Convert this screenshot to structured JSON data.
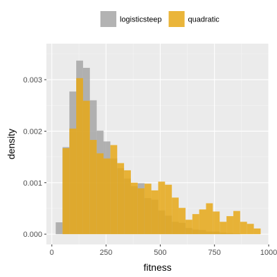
{
  "chart_data": {
    "type": "histogram",
    "xlabel": "fitness",
    "ylabel": "density",
    "xlim": [
      -25,
      1000
    ],
    "ylim": [
      -0.0002,
      0.0037
    ],
    "x_ticks": [
      0,
      250,
      500,
      750,
      1000
    ],
    "x_tick_labels": [
      "0",
      "250",
      "500",
      "750",
      "1000"
    ],
    "y_ticks": [
      0.0,
      0.001,
      0.002,
      0.003
    ],
    "y_tick_labels": [
      "0.000",
      "0.001",
      "0.002",
      "0.003"
    ],
    "grid": true,
    "legend_position": "top",
    "bin_width": 31.5,
    "bin_starts": [
      18,
      49.5,
      81,
      112.5,
      144,
      175.5,
      207,
      238.5,
      270,
      301.5,
      333,
      364.5,
      396,
      427.5,
      459,
      490.5,
      522,
      553.5,
      585,
      616.5,
      648,
      679.5,
      711,
      742.5,
      774,
      805.5,
      837,
      868.5,
      900,
      931.5
    ],
    "series": [
      {
        "name": "logisticsteep",
        "color": "#a6a6a6",
        "values": [
          0.00023,
          0.00169,
          0.00277,
          0.00337,
          0.00323,
          0.0026,
          0.00201,
          0.0018,
          0.00147,
          0.00128,
          0.00108,
          0.00093,
          0.00099,
          0.0007,
          0.00067,
          0.00046,
          0.00036,
          0.00024,
          0.00022,
          0.00012,
          9e-05,
          8e-05,
          5e-05,
          5e-05,
          3e-05,
          2e-05,
          1e-05,
          0.0,
          0.0,
          0.0
        ]
      },
      {
        "name": "quadratic",
        "color": "#e6a817",
        "values": [
          0.0,
          0.00167,
          0.00205,
          0.00303,
          0.00259,
          0.00183,
          0.00157,
          0.00147,
          0.00173,
          0.00138,
          0.00124,
          0.001,
          0.00089,
          0.00098,
          0.00085,
          0.00102,
          0.00096,
          0.00071,
          0.00051,
          0.00028,
          0.00039,
          0.00048,
          0.0006,
          0.00044,
          0.00024,
          0.00035,
          0.00045,
          0.00024,
          0.0002,
          0.00011
        ]
      }
    ]
  }
}
